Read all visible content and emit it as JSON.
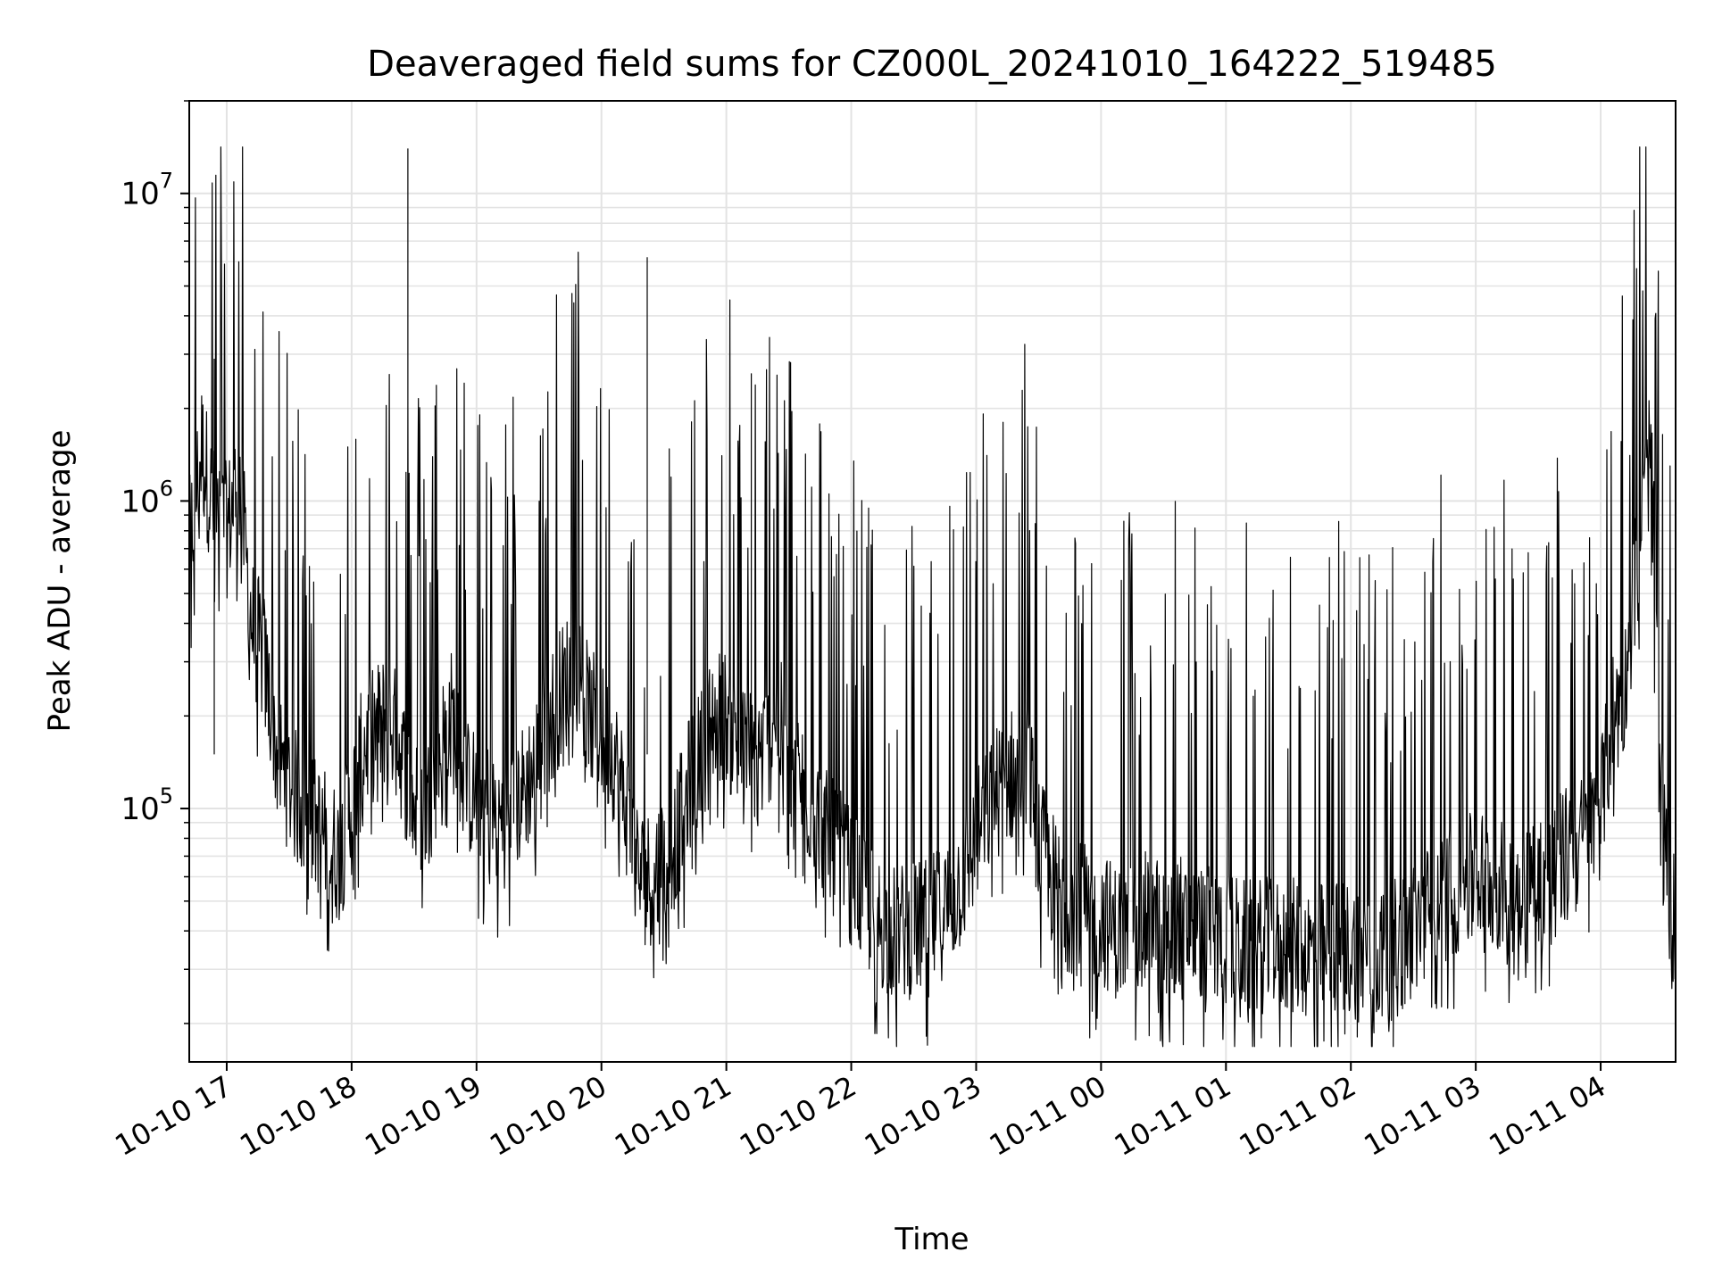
{
  "chart_data": {
    "type": "line",
    "title": "Deaveraged field sums for CZ000L_20241010_164222_519485",
    "xlabel": "Time",
    "ylabel": "Peak ADU - average",
    "yscale": "log",
    "ylim": [
      15000,
      20000000
    ],
    "xlim": [
      "2024-10-10 16:42",
      "2024-10-11 04:36"
    ],
    "grid": true,
    "line_color": "#000000",
    "x_ticks": [
      {
        "label": "10-10 17",
        "t": "2024-10-10 17:00"
      },
      {
        "label": "10-10 18",
        "t": "2024-10-10 18:00"
      },
      {
        "label": "10-10 19",
        "t": "2024-10-10 19:00"
      },
      {
        "label": "10-10 20",
        "t": "2024-10-10 20:00"
      },
      {
        "label": "10-10 21",
        "t": "2024-10-10 21:00"
      },
      {
        "label": "10-10 22",
        "t": "2024-10-10 22:00"
      },
      {
        "label": "10-10 23",
        "t": "2024-10-10 23:00"
      },
      {
        "label": "10-11 00",
        "t": "2024-10-11 00:00"
      },
      {
        "label": "10-11 01",
        "t": "2024-10-11 01:00"
      },
      {
        "label": "10-11 02",
        "t": "2024-10-11 02:00"
      },
      {
        "label": "10-11 03",
        "t": "2024-10-11 03:00"
      },
      {
        "label": "10-11 04",
        "t": "2024-10-11 04:00"
      }
    ],
    "y_ticks": [
      {
        "base": "10",
        "exp": "5",
        "value": 100000
      },
      {
        "base": "10",
        "exp": "6",
        "value": 1000000
      },
      {
        "base": "10",
        "exp": "7",
        "value": 10000000
      }
    ],
    "series": [
      {
        "x": [
          "2024-10-10 16:42",
          "2024-10-10 16:48",
          "2024-10-10 16:54",
          "2024-10-10 17:00",
          "2024-10-10 17:06",
          "2024-10-10 17:12",
          "2024-10-10 17:18",
          "2024-10-10 17:24",
          "2024-10-10 17:30",
          "2024-10-10 17:36",
          "2024-10-10 17:42",
          "2024-10-10 17:48",
          "2024-10-10 17:54",
          "2024-10-10 18:00",
          "2024-10-10 18:06",
          "2024-10-10 18:12",
          "2024-10-10 18:18",
          "2024-10-10 18:24",
          "2024-10-10 18:30",
          "2024-10-10 18:36",
          "2024-10-10 18:42",
          "2024-10-10 18:48",
          "2024-10-10 18:54",
          "2024-10-10 19:00",
          "2024-10-10 19:06",
          "2024-10-10 19:12",
          "2024-10-10 19:18",
          "2024-10-10 19:24",
          "2024-10-10 19:30",
          "2024-10-10 19:36",
          "2024-10-10 19:42",
          "2024-10-10 19:48",
          "2024-10-10 19:54",
          "2024-10-10 20:00",
          "2024-10-10 20:06",
          "2024-10-10 20:12",
          "2024-10-10 20:18",
          "2024-10-10 20:24",
          "2024-10-10 20:30",
          "2024-10-10 20:36",
          "2024-10-10 20:42",
          "2024-10-10 20:48",
          "2024-10-10 20:54",
          "2024-10-10 21:00",
          "2024-10-10 21:06",
          "2024-10-10 21:12",
          "2024-10-10 21:18",
          "2024-10-10 21:24",
          "2024-10-10 21:30",
          "2024-10-10 21:36",
          "2024-10-10 21:42",
          "2024-10-10 21:48",
          "2024-10-10 21:54",
          "2024-10-10 22:00",
          "2024-10-10 22:06",
          "2024-10-10 22:12",
          "2024-10-10 22:18",
          "2024-10-10 22:24",
          "2024-10-10 22:30",
          "2024-10-10 22:36",
          "2024-10-10 22:42",
          "2024-10-10 22:48",
          "2024-10-10 22:54",
          "2024-10-10 23:00",
          "2024-10-10 23:06",
          "2024-10-10 23:12",
          "2024-10-10 23:18",
          "2024-10-10 23:24",
          "2024-10-10 23:30",
          "2024-10-10 23:36",
          "2024-10-10 23:42",
          "2024-10-10 23:48",
          "2024-10-10 23:54",
          "2024-10-11 00:00",
          "2024-10-11 00:06",
          "2024-10-11 00:12",
          "2024-10-11 00:18",
          "2024-10-11 00:24",
          "2024-10-11 00:30",
          "2024-10-11 00:36",
          "2024-10-11 00:42",
          "2024-10-11 00:48",
          "2024-10-11 00:54",
          "2024-10-11 01:00",
          "2024-10-11 01:06",
          "2024-10-11 01:12",
          "2024-10-11 01:18",
          "2024-10-11 01:24",
          "2024-10-11 01:30",
          "2024-10-11 01:36",
          "2024-10-11 01:42",
          "2024-10-11 01:48",
          "2024-10-11 01:54",
          "2024-10-11 02:00",
          "2024-10-11 02:06",
          "2024-10-11 02:12",
          "2024-10-11 02:18",
          "2024-10-11 02:24",
          "2024-10-11 02:30",
          "2024-10-11 02:36",
          "2024-10-11 02:42",
          "2024-10-11 02:48",
          "2024-10-11 02:54",
          "2024-10-11 03:00",
          "2024-10-11 03:06",
          "2024-10-11 03:12",
          "2024-10-11 03:18",
          "2024-10-11 03:24",
          "2024-10-11 03:30",
          "2024-10-11 03:36",
          "2024-10-11 03:42",
          "2024-10-11 03:48",
          "2024-10-11 03:54",
          "2024-10-11 04:00",
          "2024-10-11 04:06",
          "2024-10-11 04:12",
          "2024-10-11 04:18",
          "2024-10-11 04:24",
          "2024-10-11 04:30",
          "2024-10-11 04:36"
        ],
        "y": [
          700000,
          1500000,
          900000,
          800000,
          1200000,
          400000,
          300000,
          150000,
          120000,
          100000,
          90000,
          80000,
          70000,
          100000,
          160000,
          180000,
          200000,
          150000,
          100000,
          100000,
          150000,
          200000,
          120000,
          110000,
          100000,
          90000,
          100000,
          120000,
          150000,
          200000,
          250000,
          300000,
          200000,
          180000,
          150000,
          100000,
          60000,
          60000,
          70000,
          80000,
          120000,
          150000,
          200000,
          200000,
          150000,
          150000,
          150000,
          200000,
          150000,
          120000,
          100000,
          80000,
          70000,
          60000,
          50000,
          45000,
          40000,
          40000,
          40000,
          42000,
          45000,
          50000,
          60000,
          80000,
          100000,
          120000,
          130000,
          150000,
          80000,
          60000,
          50000,
          48000,
          45000,
          45000,
          40000,
          40000,
          42000,
          45000,
          40000,
          45000,
          40000,
          40000,
          38000,
          38000,
          36000,
          35000,
          36000,
          35000,
          36000,
          35000,
          34000,
          35000,
          36000,
          35000,
          34000,
          33000,
          35000,
          36000,
          40000,
          45000,
          50000,
          55000,
          55000,
          60000,
          60000,
          55000,
          55000,
          60000,
          60000,
          60000,
          70000,
          75000,
          80000,
          100000,
          200000,
          250000,
          700000,
          1500000,
          80000,
          40000
        ]
      }
    ]
  }
}
